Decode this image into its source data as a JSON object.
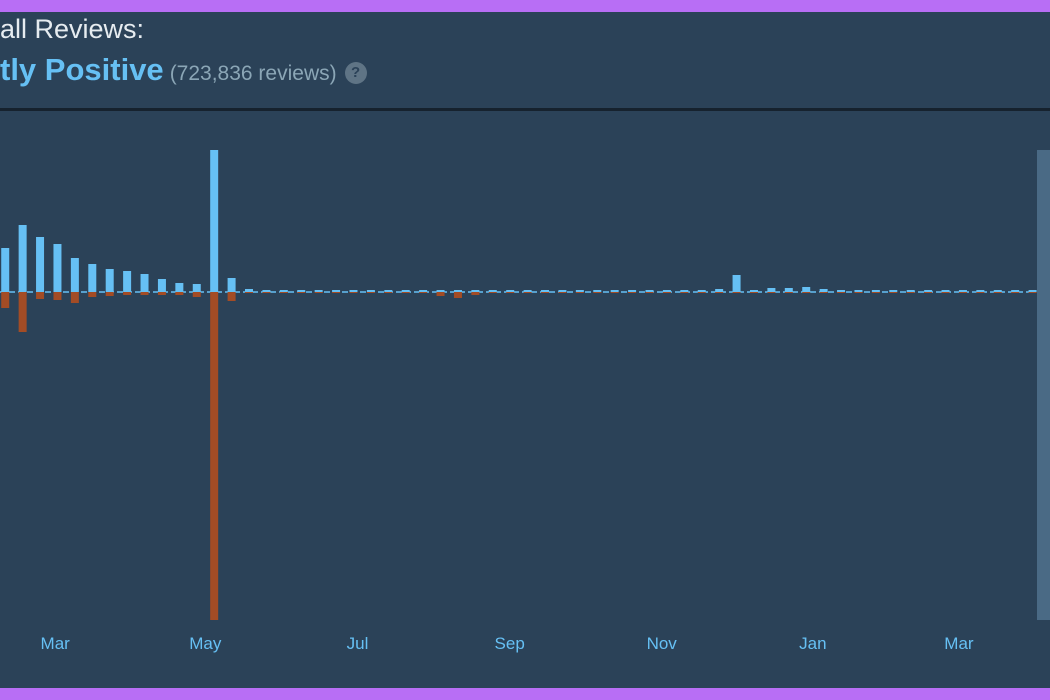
{
  "header": {
    "title": "all Reviews:",
    "rating": "tly Positive",
    "count": "(723,836 reviews)",
    "help": "?"
  },
  "chart_data": {
    "type": "bar",
    "categories": [
      null,
      null,
      null,
      null,
      null,
      null,
      null,
      null,
      null,
      null,
      null,
      null,
      null,
      null,
      null,
      null,
      null,
      null,
      null,
      null,
      null,
      null,
      null,
      null,
      null,
      null,
      null,
      null,
      null,
      null,
      null,
      null,
      null,
      null,
      null,
      null,
      null,
      null,
      null,
      null,
      null,
      null,
      null,
      null,
      null,
      null,
      null,
      null,
      null,
      null,
      null,
      null,
      null,
      null,
      null,
      null,
      null,
      null,
      null,
      null
    ],
    "series": [
      {
        "color": "#66c0f4",
        "values": [
          44,
          67,
          55,
          48,
          34,
          28,
          23,
          21,
          18,
          13,
          9,
          8,
          142,
          14,
          3,
          2,
          2,
          2,
          2,
          2,
          2,
          2,
          2,
          2,
          2,
          2,
          2,
          2,
          2,
          2,
          2,
          2,
          2,
          2,
          2,
          2,
          2,
          2,
          2,
          2,
          2,
          3,
          17,
          2,
          4,
          4,
          5,
          3,
          2,
          2,
          2,
          2,
          2,
          2,
          2,
          2,
          2,
          2,
          2,
          2
        ]
      },
      {
        "color": "#a34c25",
        "values": [
          -16,
          -40,
          -7,
          -8,
          -11,
          -5,
          -4,
          -3,
          -3,
          -3,
          -3,
          -5,
          -328,
          -9,
          -1,
          -1,
          -1,
          -1,
          -1,
          -1,
          -1,
          -1,
          -1,
          -1,
          -1,
          -4,
          -6,
          -3,
          -1,
          -1,
          -1,
          -1,
          -1,
          -1,
          -1,
          -1,
          -1,
          -1,
          -1,
          -1,
          -1,
          -1,
          -1,
          -1,
          -1,
          -1,
          -1,
          -1,
          -1,
          -1,
          -1,
          -1,
          -1,
          -1,
          -1,
          -1,
          -1,
          -1,
          -1,
          -1
        ]
      }
    ],
    "ylim": [
      -393,
      180
    ],
    "xlim": [
      -0.3,
      60
    ],
    "xticks": [
      {
        "value": 2.87,
        "label": "Mar"
      },
      {
        "value": 11.49,
        "label": "May"
      },
      {
        "value": 20.23,
        "label": "Jul"
      },
      {
        "value": 28.97,
        "label": "Sep"
      },
      {
        "value": 37.7,
        "label": "Nov"
      },
      {
        "value": 46.38,
        "label": "Jan"
      },
      {
        "value": 54.77,
        "label": "Mar"
      }
    ]
  }
}
